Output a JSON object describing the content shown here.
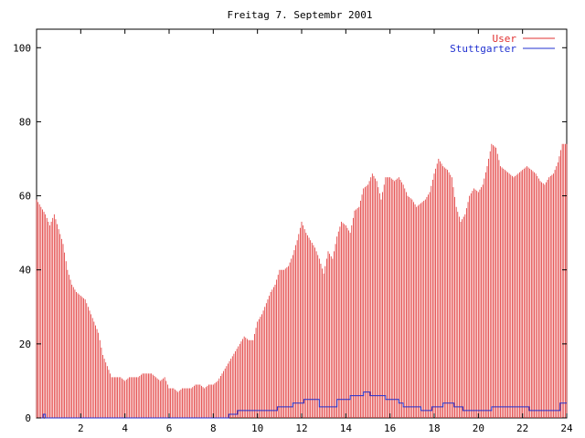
{
  "chart_data": {
    "type": "bar",
    "title": "Freitag 7. Septembr 2001",
    "xlabel": "",
    "ylabel": "",
    "xlim": [
      0,
      24
    ],
    "ylim": [
      0,
      105
    ],
    "x_ticks": [
      2,
      4,
      6,
      8,
      10,
      12,
      14,
      16,
      18,
      20,
      22,
      24
    ],
    "y_ticks": [
      0,
      20,
      40,
      60,
      80,
      100
    ],
    "grid": false,
    "legend_position": "top-right",
    "series": [
      {
        "name": "User",
        "style": "impulses",
        "color": "#e03030",
        "points": [
          [
            0.0,
            59
          ],
          [
            0.2,
            57
          ],
          [
            0.4,
            55
          ],
          [
            0.6,
            52
          ],
          [
            0.8,
            55
          ],
          [
            1.0,
            51
          ],
          [
            1.2,
            47
          ],
          [
            1.4,
            40
          ],
          [
            1.6,
            36
          ],
          [
            1.8,
            34
          ],
          [
            2.0,
            33
          ],
          [
            2.2,
            32
          ],
          [
            2.4,
            29
          ],
          [
            2.6,
            26
          ],
          [
            2.8,
            23
          ],
          [
            3.0,
            17
          ],
          [
            3.2,
            14
          ],
          [
            3.4,
            11
          ],
          [
            3.6,
            11
          ],
          [
            3.8,
            11
          ],
          [
            4.0,
            10
          ],
          [
            4.2,
            11
          ],
          [
            4.4,
            11
          ],
          [
            4.6,
            11
          ],
          [
            4.8,
            12
          ],
          [
            5.0,
            12
          ],
          [
            5.2,
            12
          ],
          [
            5.4,
            11
          ],
          [
            5.6,
            10
          ],
          [
            5.8,
            11
          ],
          [
            6.0,
            8
          ],
          [
            6.2,
            8
          ],
          [
            6.4,
            7
          ],
          [
            6.6,
            8
          ],
          [
            6.8,
            8
          ],
          [
            7.0,
            8
          ],
          [
            7.2,
            9
          ],
          [
            7.4,
            9
          ],
          [
            7.6,
            8
          ],
          [
            7.8,
            9
          ],
          [
            8.0,
            9
          ],
          [
            8.2,
            10
          ],
          [
            8.4,
            12
          ],
          [
            8.6,
            14
          ],
          [
            8.8,
            16
          ],
          [
            9.0,
            18
          ],
          [
            9.2,
            20
          ],
          [
            9.4,
            22
          ],
          [
            9.6,
            21
          ],
          [
            9.8,
            21
          ],
          [
            10.0,
            26
          ],
          [
            10.2,
            28
          ],
          [
            10.4,
            31
          ],
          [
            10.6,
            34
          ],
          [
            10.8,
            36
          ],
          [
            11.0,
            40
          ],
          [
            11.2,
            40
          ],
          [
            11.4,
            41
          ],
          [
            11.6,
            44
          ],
          [
            11.8,
            48
          ],
          [
            12.0,
            53
          ],
          [
            12.2,
            50
          ],
          [
            12.4,
            48
          ],
          [
            12.6,
            46
          ],
          [
            12.8,
            43
          ],
          [
            13.0,
            39
          ],
          [
            13.2,
            45
          ],
          [
            13.4,
            43
          ],
          [
            13.6,
            49
          ],
          [
            13.8,
            53
          ],
          [
            14.0,
            52
          ],
          [
            14.2,
            50
          ],
          [
            14.4,
            56
          ],
          [
            14.6,
            57
          ],
          [
            14.8,
            62
          ],
          [
            15.0,
            63
          ],
          [
            15.2,
            66
          ],
          [
            15.4,
            64
          ],
          [
            15.6,
            59
          ],
          [
            15.8,
            65
          ],
          [
            16.0,
            65
          ],
          [
            16.2,
            64
          ],
          [
            16.4,
            65
          ],
          [
            16.6,
            63
          ],
          [
            16.8,
            60
          ],
          [
            17.0,
            59
          ],
          [
            17.2,
            57
          ],
          [
            17.4,
            58
          ],
          [
            17.6,
            59
          ],
          [
            17.8,
            61
          ],
          [
            18.0,
            66
          ],
          [
            18.2,
            70
          ],
          [
            18.4,
            68
          ],
          [
            18.6,
            67
          ],
          [
            18.8,
            65
          ],
          [
            19.0,
            57
          ],
          [
            19.2,
            53
          ],
          [
            19.4,
            55
          ],
          [
            19.6,
            60
          ],
          [
            19.8,
            62
          ],
          [
            20.0,
            61
          ],
          [
            20.2,
            63
          ],
          [
            20.4,
            68
          ],
          [
            20.6,
            74
          ],
          [
            20.8,
            73
          ],
          [
            21.0,
            68
          ],
          [
            21.2,
            67
          ],
          [
            21.4,
            66
          ],
          [
            21.6,
            65
          ],
          [
            21.8,
            66
          ],
          [
            22.0,
            67
          ],
          [
            22.2,
            68
          ],
          [
            22.4,
            67
          ],
          [
            22.6,
            66
          ],
          [
            22.8,
            64
          ],
          [
            23.0,
            63
          ],
          [
            23.2,
            65
          ],
          [
            23.4,
            66
          ],
          [
            23.6,
            69
          ],
          [
            23.8,
            74
          ],
          [
            24.0,
            74
          ]
        ]
      },
      {
        "name": "Stuttgarter",
        "style": "steps",
        "color": "#2030d0",
        "points": [
          [
            0.0,
            0
          ],
          [
            0.3,
            1
          ],
          [
            0.4,
            0
          ],
          [
            8.7,
            1
          ],
          [
            9.1,
            2
          ],
          [
            9.6,
            2
          ],
          [
            9.8,
            2
          ],
          [
            10.9,
            3
          ],
          [
            11.6,
            4
          ],
          [
            12.1,
            5
          ],
          [
            12.8,
            3
          ],
          [
            13.6,
            5
          ],
          [
            14.2,
            6
          ],
          [
            14.8,
            7
          ],
          [
            15.1,
            6
          ],
          [
            15.8,
            5
          ],
          [
            16.4,
            4
          ],
          [
            16.6,
            3
          ],
          [
            17.2,
            3
          ],
          [
            17.4,
            2
          ],
          [
            17.8,
            2
          ],
          [
            17.9,
            3
          ],
          [
            18.4,
            4
          ],
          [
            18.9,
            3
          ],
          [
            19.3,
            2
          ],
          [
            20.6,
            3
          ],
          [
            22.0,
            3
          ],
          [
            22.3,
            2
          ],
          [
            23.7,
            4
          ],
          [
            24.0,
            4
          ]
        ]
      }
    ]
  }
}
